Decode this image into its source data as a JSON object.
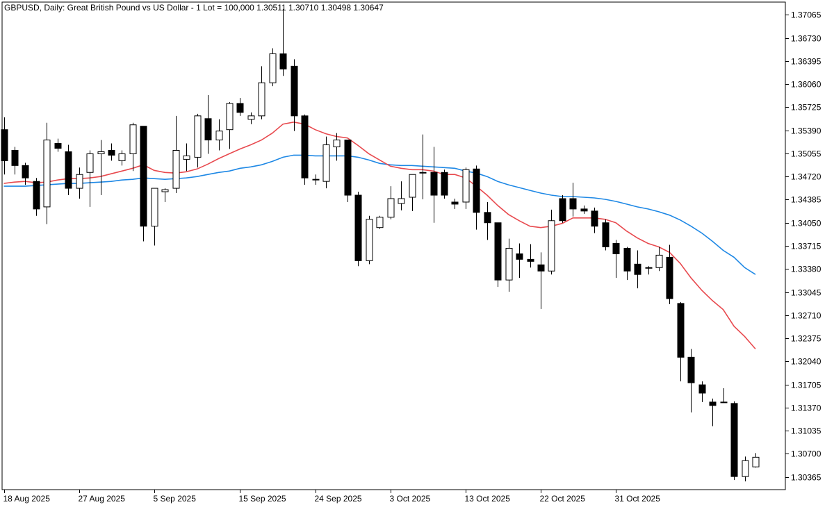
{
  "header": {
    "symbol_info": "GBPUSD, Daily:  Great British Pound vs US Dollar - 1 Lot = 100,000  1.30511 1.30710 1.30498 1.30647"
  },
  "chart_data": {
    "type": "candlestick",
    "title": "GBPUSD, Daily:  Great British Pound vs US Dollar - 1 Lot = 100,000  1.30511 1.30710 1.30498 1.30647",
    "ylim": [
      1.3018,
      1.3725
    ],
    "yticks": [
      "1.37065",
      "1.36730",
      "1.36395",
      "1.36060",
      "1.35725",
      "1.35390",
      "1.35055",
      "1.34720",
      "1.34385",
      "1.34050",
      "1.33715",
      "1.33380",
      "1.33045",
      "1.32710",
      "1.32375",
      "1.32040",
      "1.31705",
      "1.31370",
      "1.31035",
      "1.30700",
      "1.30365"
    ],
    "xticks": [
      {
        "index": 0,
        "label": "18 Aug 2025"
      },
      {
        "index": 7,
        "label": "27 Aug 2025"
      },
      {
        "index": 14,
        "label": "5 Sep 2025"
      },
      {
        "index": 22,
        "label": "15 Sep 2025"
      },
      {
        "index": 29,
        "label": "24 Sep 2025"
      },
      {
        "index": 36,
        "label": "3 Oct 2025"
      },
      {
        "index": 43,
        "label": "13 Oct 2025"
      },
      {
        "index": 50,
        "label": "22 Oct 2025"
      },
      {
        "index": 57,
        "label": "31 Oct 2025"
      }
    ],
    "candles": [
      {
        "o": 1.354,
        "h": 1.3558,
        "l": 1.3475,
        "c": 1.3495
      },
      {
        "o": 1.351,
        "h": 1.3515,
        "l": 1.3475,
        "c": 1.3488
      },
      {
        "o": 1.3488,
        "h": 1.3492,
        "l": 1.346,
        "c": 1.347
      },
      {
        "o": 1.3465,
        "h": 1.347,
        "l": 1.3415,
        "c": 1.3425
      },
      {
        "o": 1.3428,
        "h": 1.355,
        "l": 1.3403,
        "c": 1.3525
      },
      {
        "o": 1.352,
        "h": 1.3527,
        "l": 1.3508,
        "c": 1.3513
      },
      {
        "o": 1.3508,
        "h": 1.3518,
        "l": 1.3445,
        "c": 1.3455
      },
      {
        "o": 1.3455,
        "h": 1.3485,
        "l": 1.344,
        "c": 1.3475
      },
      {
        "o": 1.3478,
        "h": 1.351,
        "l": 1.3428,
        "c": 1.3505
      },
      {
        "o": 1.3505,
        "h": 1.3525,
        "l": 1.3445,
        "c": 1.3508
      },
      {
        "o": 1.351,
        "h": 1.352,
        "l": 1.3495,
        "c": 1.3503
      },
      {
        "o": 1.3495,
        "h": 1.351,
        "l": 1.3488,
        "c": 1.3505
      },
      {
        "o": 1.3505,
        "h": 1.355,
        "l": 1.348,
        "c": 1.3547
      },
      {
        "o": 1.3545,
        "h": 1.3545,
        "l": 1.3378,
        "c": 1.34
      },
      {
        "o": 1.34,
        "h": 1.3455,
        "l": 1.3372,
        "c": 1.3455
      },
      {
        "o": 1.345,
        "h": 1.3455,
        "l": 1.3435,
        "c": 1.3453
      },
      {
        "o": 1.3455,
        "h": 1.356,
        "l": 1.3448,
        "c": 1.351
      },
      {
        "o": 1.3497,
        "h": 1.352,
        "l": 1.348,
        "c": 1.3502
      },
      {
        "o": 1.35,
        "h": 1.3563,
        "l": 1.3485,
        "c": 1.356
      },
      {
        "o": 1.3556,
        "h": 1.359,
        "l": 1.3505,
        "c": 1.3525
      },
      {
        "o": 1.3525,
        "h": 1.3555,
        "l": 1.351,
        "c": 1.3538
      },
      {
        "o": 1.354,
        "h": 1.358,
        "l": 1.3512,
        "c": 1.3578
      },
      {
        "o": 1.3578,
        "h": 1.3586,
        "l": 1.356,
        "c": 1.3565
      },
      {
        "o": 1.3555,
        "h": 1.3565,
        "l": 1.3548,
        "c": 1.356
      },
      {
        "o": 1.356,
        "h": 1.3632,
        "l": 1.3555,
        "c": 1.3608
      },
      {
        "o": 1.3608,
        "h": 1.3658,
        "l": 1.3603,
        "c": 1.365
      },
      {
        "o": 1.365,
        "h": 1.3715,
        "l": 1.3618,
        "c": 1.3628
      },
      {
        "o": 1.3632,
        "h": 1.3642,
        "l": 1.3538,
        "c": 1.356
      },
      {
        "o": 1.356,
        "h": 1.3562,
        "l": 1.346,
        "c": 1.347
      },
      {
        "o": 1.3468,
        "h": 1.3475,
        "l": 1.346,
        "c": 1.3468
      },
      {
        "o": 1.3465,
        "h": 1.353,
        "l": 1.3455,
        "c": 1.3518
      },
      {
        "o": 1.3515,
        "h": 1.3535,
        "l": 1.3495,
        "c": 1.3525
      },
      {
        "o": 1.3525,
        "h": 1.3525,
        "l": 1.3435,
        "c": 1.3445
      },
      {
        "o": 1.3445,
        "h": 1.345,
        "l": 1.3342,
        "c": 1.335
      },
      {
        "o": 1.335,
        "h": 1.3415,
        "l": 1.3345,
        "c": 1.341
      },
      {
        "o": 1.3398,
        "h": 1.3415,
        "l": 1.3396,
        "c": 1.3413
      },
      {
        "o": 1.3413,
        "h": 1.3458,
        "l": 1.341,
        "c": 1.344
      },
      {
        "o": 1.3433,
        "h": 1.3465,
        "l": 1.3423,
        "c": 1.344
      },
      {
        "o": 1.3442,
        "h": 1.3475,
        "l": 1.3422,
        "c": 1.3475
      },
      {
        "o": 1.3477,
        "h": 1.3533,
        "l": 1.3439,
        "c": 1.3478
      },
      {
        "o": 1.3478,
        "h": 1.3515,
        "l": 1.3405,
        "c": 1.3445
      },
      {
        "o": 1.3478,
        "h": 1.3482,
        "l": 1.344,
        "c": 1.3445
      },
      {
        "o": 1.3435,
        "h": 1.344,
        "l": 1.3425,
        "c": 1.3432
      },
      {
        "o": 1.3435,
        "h": 1.3485,
        "l": 1.3425,
        "c": 1.3482
      },
      {
        "o": 1.3483,
        "h": 1.3488,
        "l": 1.3395,
        "c": 1.342
      },
      {
        "o": 1.342,
        "h": 1.3435,
        "l": 1.338,
        "c": 1.3405
      },
      {
        "o": 1.3405,
        "h": 1.3405,
        "l": 1.3312,
        "c": 1.3322
      },
      {
        "o": 1.3322,
        "h": 1.3382,
        "l": 1.3305,
        "c": 1.3368
      },
      {
        "o": 1.336,
        "h": 1.3375,
        "l": 1.3325,
        "c": 1.3352
      },
      {
        "o": 1.3352,
        "h": 1.3374,
        "l": 1.334,
        "c": 1.3349
      },
      {
        "o": 1.3344,
        "h": 1.3362,
        "l": 1.328,
        "c": 1.3335
      },
      {
        "o": 1.3335,
        "h": 1.3424,
        "l": 1.333,
        "c": 1.3408
      },
      {
        "o": 1.344,
        "h": 1.3445,
        "l": 1.3405,
        "c": 1.3408
      },
      {
        "o": 1.344,
        "h": 1.3463,
        "l": 1.3414,
        "c": 1.3425
      },
      {
        "o": 1.3425,
        "h": 1.343,
        "l": 1.3418,
        "c": 1.3422
      },
      {
        "o": 1.3422,
        "h": 1.3427,
        "l": 1.339,
        "c": 1.34
      },
      {
        "o": 1.3405,
        "h": 1.341,
        "l": 1.3365,
        "c": 1.337
      },
      {
        "o": 1.3375,
        "h": 1.338,
        "l": 1.3325,
        "c": 1.336
      },
      {
        "o": 1.3368,
        "h": 1.337,
        "l": 1.3322,
        "c": 1.3335
      },
      {
        "o": 1.3345,
        "h": 1.3365,
        "l": 1.331,
        "c": 1.333
      },
      {
        "o": 1.3339,
        "h": 1.3342,
        "l": 1.333,
        "c": 1.334
      },
      {
        "o": 1.334,
        "h": 1.337,
        "l": 1.3335,
        "c": 1.3358
      },
      {
        "o": 1.3355,
        "h": 1.3373,
        "l": 1.3287,
        "c": 1.3295
      },
      {
        "o": 1.3288,
        "h": 1.329,
        "l": 1.3175,
        "c": 1.321
      },
      {
        "o": 1.321,
        "h": 1.3222,
        "l": 1.313,
        "c": 1.3173
      },
      {
        "o": 1.317,
        "h": 1.3175,
        "l": 1.3145,
        "c": 1.3158
      },
      {
        "o": 1.3145,
        "h": 1.315,
        "l": 1.311,
        "c": 1.314
      },
      {
        "o": 1.3145,
        "h": 1.3165,
        "l": 1.3145,
        "c": 1.3145
      },
      {
        "o": 1.3143,
        "h": 1.3146,
        "l": 1.3032,
        "c": 1.3037
      },
      {
        "o": 1.3037,
        "h": 1.3066,
        "l": 1.303,
        "c": 1.306
      },
      {
        "o": 1.3051,
        "h": 1.3071,
        "l": 1.305,
        "c": 1.3065
      }
    ],
    "ma_fast": {
      "color": "#e84a4f",
      "values": [
        1.3462,
        1.3464,
        1.3465,
        1.3463,
        1.3464,
        1.3467,
        1.3469,
        1.3469,
        1.347,
        1.3472,
        1.3476,
        1.348,
        1.3484,
        1.3489,
        1.3481,
        1.3478,
        1.3477,
        1.3479,
        1.3483,
        1.349,
        1.3498,
        1.3505,
        1.3512,
        1.3518,
        1.3525,
        1.3535,
        1.3548,
        1.3551,
        1.3548,
        1.354,
        1.3534,
        1.353,
        1.3528,
        1.3517,
        1.3505,
        1.3496,
        1.3487,
        1.3484,
        1.3482,
        1.3482,
        1.348,
        1.3475,
        1.3475,
        1.347,
        1.3458,
        1.3445,
        1.343,
        1.3417,
        1.3408,
        1.34,
        1.3398,
        1.34,
        1.3404,
        1.3412,
        1.3412,
        1.3412,
        1.341,
        1.3405,
        1.3393,
        1.3383,
        1.3375,
        1.337,
        1.3362,
        1.3346,
        1.3325,
        1.3307,
        1.3292,
        1.3279,
        1.3255,
        1.324,
        1.3222
      ]
    },
    "ma_slow": {
      "color": "#1e88e5",
      "values": [
        1.3458,
        1.3458,
        1.3458,
        1.3459,
        1.346,
        1.3461,
        1.3462,
        1.3462,
        1.3463,
        1.3464,
        1.3465,
        1.3467,
        1.3468,
        1.347,
        1.3469,
        1.3468,
        1.3469,
        1.347,
        1.3472,
        1.3475,
        1.3478,
        1.348,
        1.3484,
        1.3486,
        1.3489,
        1.3494,
        1.35,
        1.3503,
        1.3503,
        1.3502,
        1.3502,
        1.3502,
        1.3502,
        1.35,
        1.3496,
        1.3491,
        1.3489,
        1.3488,
        1.3488,
        1.3487,
        1.3486,
        1.3485,
        1.3484,
        1.348,
        1.3477,
        1.3472,
        1.3465,
        1.346,
        1.3456,
        1.3452,
        1.3448,
        1.3445,
        1.3443,
        1.3443,
        1.3442,
        1.3441,
        1.3439,
        1.3436,
        1.3432,
        1.3428,
        1.3425,
        1.3421,
        1.3416,
        1.3409,
        1.34,
        1.339,
        1.3378,
        1.3365,
        1.3355,
        1.334,
        1.333
      ]
    }
  }
}
